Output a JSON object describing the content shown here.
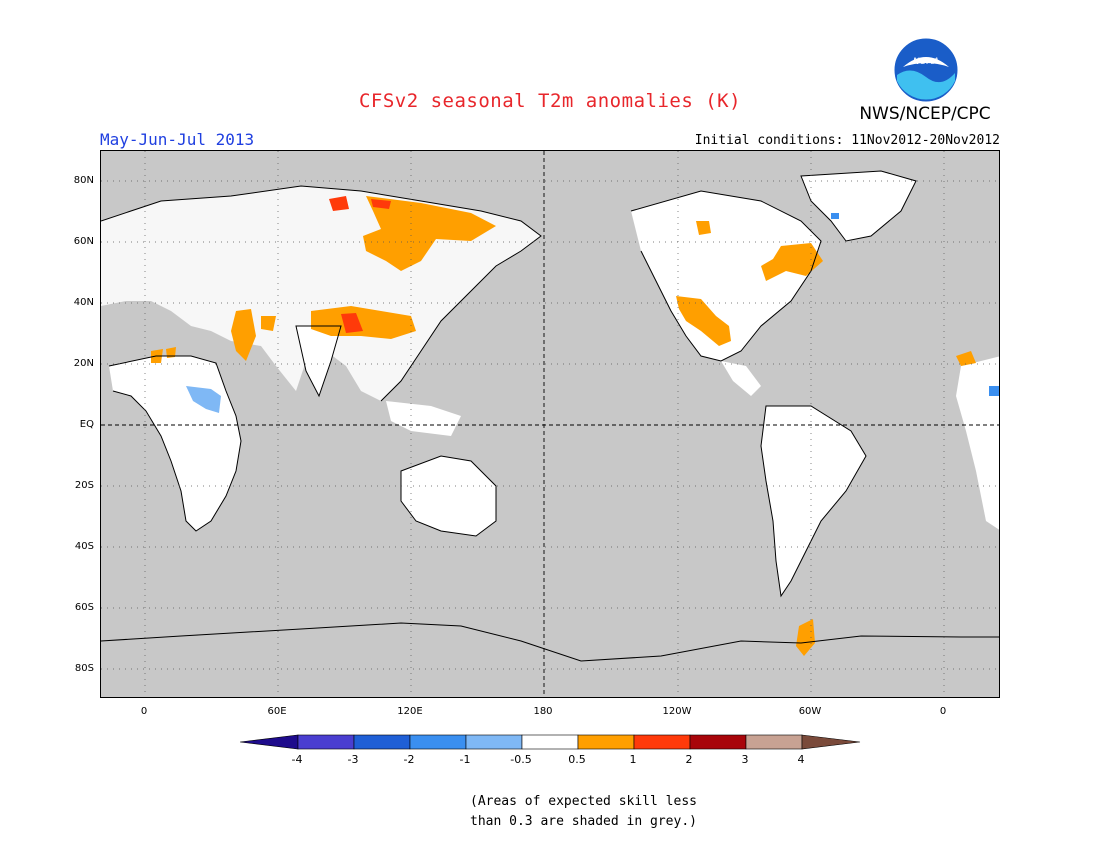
{
  "header": {
    "title": "CFSv2 seasonal T2m anomalies (K)",
    "agency": "NWS/NCEP/CPC",
    "period": "May-Jun-Jul 2013",
    "initial_conditions": "Initial conditions: 11Nov2012-20Nov2012",
    "logo_text": "NOAA"
  },
  "map": {
    "projection": "cylindrical, centered on 180",
    "lat_ticks": [
      "80N",
      "60N",
      "40N",
      "20N",
      "EQ",
      "20S",
      "40S",
      "60S",
      "80S"
    ],
    "lon_ticks": [
      "0",
      "60E",
      "120E",
      "180",
      "120W",
      "60W",
      "0"
    ],
    "dashed_reference_lines": [
      "EQ",
      "180"
    ],
    "colors": {
      "background_grey": "#c8c8c8",
      "land_white": "#ffffff",
      "coastline": "#000000"
    },
    "anomaly_regions": [
      {
        "region": "northern Siberia",
        "category": "0.5 to 1"
      },
      {
        "region": "Taymyr / northern Russia",
        "category": "1 to 2"
      },
      {
        "region": "central Asia / Tibet",
        "category": "0.5 to 1"
      },
      {
        "region": "Tibetan Plateau core",
        "category": "1 to 2"
      },
      {
        "region": "Arabia / Middle East",
        "category": "0.5 to 1"
      },
      {
        "region": "western United States",
        "category": "0.5 to 1"
      },
      {
        "region": "eastern Canada",
        "category": "0.5 to 1"
      },
      {
        "region": "Antarctic Peninsula",
        "category": "0.5 to 1"
      },
      {
        "region": "Sahel",
        "category": "0.5 to 1"
      },
      {
        "region": "central Africa",
        "category": "-1 to -0.5"
      },
      {
        "region": "Greenland coast",
        "category": "-2 to -1"
      }
    ]
  },
  "colorbar": {
    "labels": [
      "-4",
      "-3",
      "-2",
      "-1",
      "-0.5",
      "0.5",
      "1",
      "2",
      "3",
      "4"
    ],
    "colors": [
      "#1e0b8c",
      "#4a3ed0",
      "#1f5fd6",
      "#3a8ff0",
      "#7fb8f5",
      "#ffffff",
      "#ff9f00",
      "#ff3a0a",
      "#a8050a",
      "#c8a293",
      "#7a4a3a"
    ]
  },
  "note": {
    "line1": "(Areas of expected skill less",
    "line2": "than 0.3 are shaded in grey.)"
  }
}
